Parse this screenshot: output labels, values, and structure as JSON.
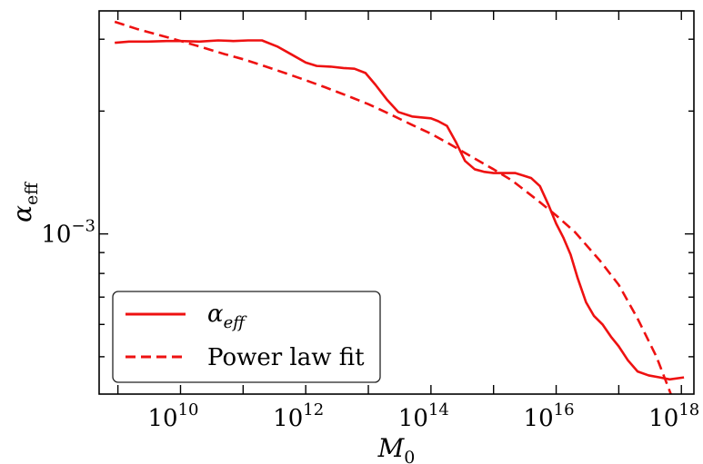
{
  "chart_data": {
    "type": "line",
    "title": "",
    "xscale": "log",
    "yscale": "log",
    "xlabel": {
      "base": "M",
      "sub": "0"
    },
    "ylabel": {
      "base": "α",
      "sub": "eff"
    },
    "xlim": [
      1000000000.0,
      1e+18
    ],
    "xticks": [
      {
        "value": 10000000000.0,
        "base": "10",
        "exp": "10"
      },
      {
        "value": 1000000000000.0,
        "base": "10",
        "exp": "12"
      },
      {
        "value": 100000000000000.0,
        "base": "10",
        "exp": "14"
      },
      {
        "value": 1e+16,
        "base": "10",
        "exp": "16"
      },
      {
        "value": 1e+18,
        "base": "10",
        "exp": "18"
      }
    ],
    "yticks": [
      {
        "value": 0.001,
        "base": "10",
        "exp": "−3"
      }
    ],
    "legend_position": "lower-left",
    "series": [
      {
        "name": "α_eff",
        "legend": {
          "base": "α",
          "sub": "eff"
        },
        "style": "solid",
        "color": "#ee1111",
        "points": [
          [
            890000000.0,
            0.00294
          ],
          [
            1500000000.0,
            0.00296
          ],
          [
            3000000000.0,
            0.00296
          ],
          [
            6000000000.0,
            0.00297
          ],
          [
            10000000000.0,
            0.00297
          ],
          [
            20000000000.0,
            0.00296
          ],
          [
            40000000000.0,
            0.00298
          ],
          [
            70000000000.0,
            0.00297
          ],
          [
            120000000000.0,
            0.00298
          ],
          [
            200000000000.0,
            0.00298
          ],
          [
            350000000000.0,
            0.00288
          ],
          [
            600000000000.0,
            0.00275
          ],
          [
            1000000000000.0,
            0.00263
          ],
          [
            1500000000000.0,
            0.00258
          ],
          [
            2500000000000.0,
            0.00257
          ],
          [
            4000000000000.0,
            0.00255
          ],
          [
            6000000000000.0,
            0.00254
          ],
          [
            9000000000000.0,
            0.00248
          ],
          [
            13000000000000.0,
            0.00232
          ],
          [
            20000000000000.0,
            0.00213
          ],
          [
            30000000000000.0,
            0.00199
          ],
          [
            50000000000000.0,
            0.00194
          ],
          [
            70000000000000.0,
            0.00193
          ],
          [
            100000000000000.0,
            0.00192
          ],
          [
            130000000000000.0,
            0.00189
          ],
          [
            180000000000000.0,
            0.00184
          ],
          [
            250000000000000.0,
            0.00168
          ],
          [
            350000000000000.0,
            0.00151
          ],
          [
            500000000000000.0,
            0.00144
          ],
          [
            700000000000000.0,
            0.00142
          ],
          [
            1000000000000000.0,
            0.00141
          ],
          [
            1500000000000000.0,
            0.00141
          ],
          [
            2200000000000000.0,
            0.00141
          ],
          [
            3000000000000000.0,
            0.00139
          ],
          [
            4000000000000000.0,
            0.00137
          ],
          [
            5500000000000000.0,
            0.00131
          ],
          [
            7500000000000000.0,
            0.00118
          ],
          [
            1e+16,
            0.00106
          ],
          [
            1.3e+16,
            0.00098
          ],
          [
            1.7e+16,
            0.00089
          ],
          [
            2.2e+16,
            0.00078
          ],
          [
            3e+16,
            0.00068
          ],
          [
            4e+16,
            0.00063
          ],
          [
            5.5e+16,
            0.0006
          ],
          [
            7.5e+16,
            0.00056
          ],
          [
            1e+17,
            0.00053
          ],
          [
            1.4e+17,
            0.00049
          ],
          [
            2e+17,
            0.00046
          ],
          [
            3e+17,
            0.00045
          ],
          [
            4.5e+17,
            0.000445
          ],
          [
            6.5e+17,
            0.00044
          ],
          [
            1.1e+18,
            0.000445
          ]
        ]
      },
      {
        "name": "Power law fit",
        "legend": {
          "base": "Power law fit",
          "sub": ""
        },
        "style": "dashed",
        "color": "#ee1111",
        "points": [
          [
            890000000.0,
            0.00331
          ],
          [
            2000000000.0,
            0.00318
          ],
          [
            5000000000.0,
            0.00306
          ],
          [
            10000000000.0,
            0.00297
          ],
          [
            20000000000.0,
            0.00288
          ],
          [
            50000000000.0,
            0.00276
          ],
          [
            100000000000.0,
            0.00268
          ],
          [
            200000000000.0,
            0.00259
          ],
          [
            500000000000.0,
            0.00247
          ],
          [
            1000000000000.0,
            0.00238
          ],
          [
            2000000000000.0,
            0.00229
          ],
          [
            5000000000000.0,
            0.00217
          ],
          [
            10000000000000.0,
            0.00208
          ],
          [
            20000000000000.0,
            0.00198
          ],
          [
            50000000000000.0,
            0.00185
          ],
          [
            100000000000000.0,
            0.00176
          ],
          [
            200000000000000.0,
            0.00166
          ],
          [
            500000000000000.0,
            0.00153
          ],
          [
            1000000000000000.0,
            0.00144
          ],
          [
            2000000000000000.0,
            0.00135
          ],
          [
            5000000000000000.0,
            0.00121
          ],
          [
            1e+16,
            0.00111
          ],
          [
            2e+16,
            0.00101
          ],
          [
            5e+16,
            0.00086
          ],
          [
            1e+17,
            0.00075
          ],
          [
            2e+17,
            0.00062
          ],
          [
            4e+17,
            0.0005
          ],
          [
            7e+17,
            0.0004
          ],
          [
            9e+17,
            0.00035
          ],
          [
            1.15e+18,
            0.00031
          ]
        ]
      }
    ]
  }
}
